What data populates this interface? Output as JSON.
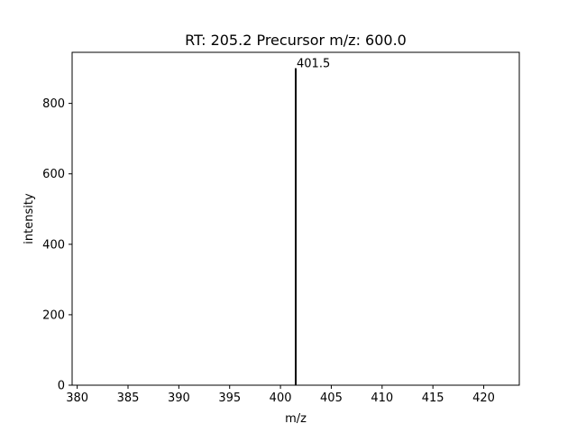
{
  "chart_data": {
    "type": "bar",
    "title": "RT: 205.2   Precursor m/z: 600.0",
    "xlabel": "m/z",
    "ylabel": "intensity",
    "xlim": [
      379.5,
      423.5
    ],
    "ylim": [
      0,
      945
    ],
    "x_ticks": [
      380,
      385,
      390,
      395,
      400,
      405,
      410,
      415,
      420
    ],
    "y_ticks": [
      0,
      200,
      400,
      600,
      800
    ],
    "peaks": [
      {
        "mz": 401.5,
        "intensity": 900,
        "label": "401.5"
      }
    ],
    "grid": false,
    "legend": "none",
    "color": "#000000"
  }
}
